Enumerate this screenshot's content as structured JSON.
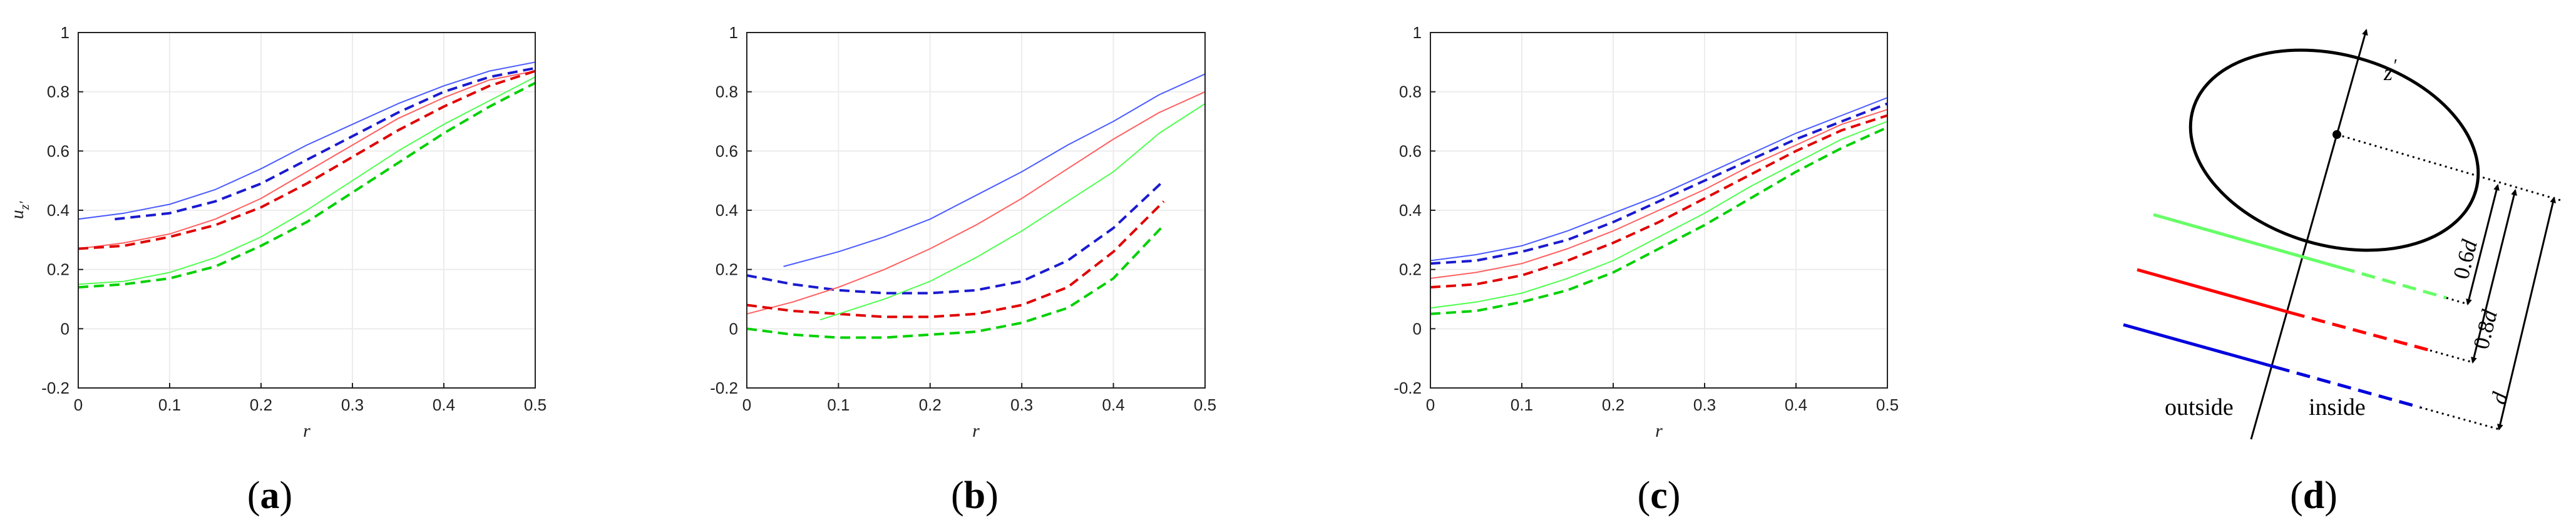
{
  "chart_data": [
    {
      "type": "line",
      "panel": "a",
      "label_open": "(",
      "label_letter": "a",
      "label_close": ")",
      "xlabel": "r",
      "ylabel_base": "u",
      "ylabel_sub": "z′",
      "xlim": [
        0,
        0.5
      ],
      "ylim": [
        -0.2,
        1
      ],
      "xticks": [
        "0",
        "0.1",
        "0.2",
        "0.3",
        "0.4",
        "0.5"
      ],
      "yticks": [
        "-0.2",
        "0",
        "0.2",
        "0.4",
        "0.6",
        "0.8",
        "1"
      ],
      "grid": true,
      "series": [
        {
          "name": "blue-solid",
          "color": "#4a5cff",
          "style": "solid",
          "x": [
            0,
            0.05,
            0.1,
            0.15,
            0.2,
            0.25,
            0.3,
            0.35,
            0.4,
            0.45,
            0.5
          ],
          "y": [
            0.37,
            0.39,
            0.42,
            0.47,
            0.54,
            0.62,
            0.69,
            0.76,
            0.82,
            0.87,
            0.9
          ]
        },
        {
          "name": "blue-dashed",
          "color": "#1a1ad0",
          "style": "dashed",
          "x": [
            0.04,
            0.1,
            0.15,
            0.2,
            0.25,
            0.3,
            0.35,
            0.4,
            0.45,
            0.5
          ],
          "y": [
            0.37,
            0.39,
            0.43,
            0.49,
            0.57,
            0.65,
            0.73,
            0.8,
            0.85,
            0.88
          ]
        },
        {
          "name": "red-solid",
          "color": "#ff6060",
          "style": "solid",
          "x": [
            0,
            0.05,
            0.1,
            0.15,
            0.2,
            0.25,
            0.3,
            0.35,
            0.4,
            0.45,
            0.5
          ],
          "y": [
            0.27,
            0.29,
            0.32,
            0.37,
            0.44,
            0.53,
            0.62,
            0.71,
            0.78,
            0.84,
            0.87
          ]
        },
        {
          "name": "red-dashed",
          "color": "#e00000",
          "style": "dashed",
          "x": [
            0,
            0.05,
            0.1,
            0.15,
            0.2,
            0.25,
            0.3,
            0.35,
            0.4,
            0.45,
            0.5
          ],
          "y": [
            0.27,
            0.28,
            0.31,
            0.35,
            0.41,
            0.49,
            0.58,
            0.67,
            0.75,
            0.82,
            0.87
          ]
        },
        {
          "name": "green-solid",
          "color": "#50ff50",
          "style": "solid",
          "x": [
            0,
            0.05,
            0.1,
            0.15,
            0.2,
            0.25,
            0.3,
            0.35,
            0.4,
            0.45,
            0.5
          ],
          "y": [
            0.15,
            0.16,
            0.19,
            0.24,
            0.31,
            0.4,
            0.5,
            0.6,
            0.69,
            0.77,
            0.85
          ]
        },
        {
          "name": "green-dashed",
          "color": "#00d000",
          "style": "dashed",
          "x": [
            0,
            0.05,
            0.1,
            0.15,
            0.2,
            0.25,
            0.3,
            0.35,
            0.4,
            0.45,
            0.5
          ],
          "y": [
            0.14,
            0.15,
            0.17,
            0.21,
            0.28,
            0.36,
            0.46,
            0.56,
            0.66,
            0.75,
            0.83
          ]
        }
      ]
    },
    {
      "type": "line",
      "panel": "b",
      "label_open": "(",
      "label_letter": "b",
      "label_close": ")",
      "xlabel": "r",
      "ylabel_base": "",
      "ylabel_sub": "",
      "xlim": [
        0,
        0.5
      ],
      "ylim": [
        -0.2,
        1
      ],
      "xticks": [
        "0",
        "0.1",
        "0.2",
        "0.3",
        "0.4",
        "0.5"
      ],
      "yticks": [
        "-0.2",
        "0",
        "0.2",
        "0.4",
        "0.6",
        "0.8",
        "1"
      ],
      "grid": true,
      "series": [
        {
          "name": "blue-solid",
          "color": "#4a5cff",
          "style": "solid",
          "x": [
            0.04,
            0.1,
            0.15,
            0.2,
            0.25,
            0.3,
            0.35,
            0.4,
            0.45,
            0.5
          ],
          "y": [
            0.21,
            0.26,
            0.31,
            0.37,
            0.45,
            0.53,
            0.62,
            0.7,
            0.79,
            0.86
          ]
        },
        {
          "name": "blue-dashed",
          "color": "#1a1ad0",
          "style": "dashed",
          "x": [
            0,
            0.05,
            0.1,
            0.15,
            0.2,
            0.25,
            0.3,
            0.35,
            0.4,
            0.455
          ],
          "y": [
            0.18,
            0.15,
            0.13,
            0.12,
            0.12,
            0.13,
            0.16,
            0.23,
            0.34,
            0.5
          ]
        },
        {
          "name": "red-solid",
          "color": "#ff6060",
          "style": "solid",
          "x": [
            0,
            0.05,
            0.1,
            0.15,
            0.2,
            0.25,
            0.3,
            0.35,
            0.4,
            0.45,
            0.5
          ],
          "y": [
            0.05,
            0.09,
            0.14,
            0.2,
            0.27,
            0.35,
            0.44,
            0.54,
            0.64,
            0.73,
            0.8
          ]
        },
        {
          "name": "red-dashed",
          "color": "#e00000",
          "style": "dashed",
          "x": [
            0,
            0.05,
            0.1,
            0.15,
            0.2,
            0.25,
            0.3,
            0.35,
            0.4,
            0.455
          ],
          "y": [
            0.08,
            0.06,
            0.05,
            0.04,
            0.04,
            0.05,
            0.08,
            0.14,
            0.26,
            0.43
          ]
        },
        {
          "name": "green-solid",
          "color": "#50ff50",
          "style": "solid",
          "x": [
            0.08,
            0.1,
            0.15,
            0.2,
            0.25,
            0.3,
            0.35,
            0.4,
            0.45,
            0.5
          ],
          "y": [
            0.03,
            0.05,
            0.1,
            0.16,
            0.24,
            0.33,
            0.43,
            0.53,
            0.66,
            0.76
          ]
        },
        {
          "name": "green-dashed",
          "color": "#00d000",
          "style": "dashed",
          "x": [
            0,
            0.05,
            0.1,
            0.15,
            0.2,
            0.25,
            0.3,
            0.35,
            0.4,
            0.455
          ],
          "y": [
            0.0,
            -0.02,
            -0.03,
            -0.03,
            -0.02,
            -0.01,
            0.02,
            0.07,
            0.17,
            0.35
          ]
        }
      ]
    },
    {
      "type": "line",
      "panel": "c",
      "label_open": "(",
      "label_letter": "c",
      "label_close": ")",
      "xlabel": "r",
      "ylabel_base": "",
      "ylabel_sub": "",
      "xlim": [
        0,
        0.5
      ],
      "ylim": [
        -0.2,
        1
      ],
      "xticks": [
        "0",
        "0.1",
        "0.2",
        "0.3",
        "0.4",
        "0.5"
      ],
      "yticks": [
        "-0.2",
        "0",
        "0.2",
        "0.4",
        "0.6",
        "0.8",
        "1"
      ],
      "grid": true,
      "series": [
        {
          "name": "blue-solid",
          "color": "#4a5cff",
          "style": "solid",
          "x": [
            0,
            0.05,
            0.1,
            0.15,
            0.2,
            0.25,
            0.3,
            0.35,
            0.4,
            0.45,
            0.5
          ],
          "y": [
            0.23,
            0.25,
            0.28,
            0.33,
            0.39,
            0.45,
            0.52,
            0.59,
            0.66,
            0.72,
            0.78
          ]
        },
        {
          "name": "blue-dashed",
          "color": "#1a1ad0",
          "style": "dashed",
          "x": [
            0,
            0.05,
            0.1,
            0.15,
            0.2,
            0.25,
            0.3,
            0.35,
            0.4,
            0.45,
            0.5
          ],
          "y": [
            0.22,
            0.23,
            0.26,
            0.3,
            0.36,
            0.43,
            0.5,
            0.57,
            0.64,
            0.7,
            0.76
          ]
        },
        {
          "name": "red-solid",
          "color": "#ff6060",
          "style": "solid",
          "x": [
            0,
            0.05,
            0.1,
            0.15,
            0.2,
            0.25,
            0.3,
            0.35,
            0.4,
            0.45,
            0.5
          ],
          "y": [
            0.17,
            0.19,
            0.22,
            0.27,
            0.33,
            0.4,
            0.47,
            0.55,
            0.62,
            0.69,
            0.74
          ]
        },
        {
          "name": "red-dashed",
          "color": "#e00000",
          "style": "dashed",
          "x": [
            0,
            0.05,
            0.1,
            0.15,
            0.2,
            0.25,
            0.3,
            0.35,
            0.4,
            0.45,
            0.5
          ],
          "y": [
            0.14,
            0.15,
            0.18,
            0.23,
            0.29,
            0.36,
            0.44,
            0.52,
            0.6,
            0.67,
            0.72
          ]
        },
        {
          "name": "green-solid",
          "color": "#50ff50",
          "style": "solid",
          "x": [
            0,
            0.05,
            0.1,
            0.15,
            0.2,
            0.25,
            0.3,
            0.35,
            0.4,
            0.45,
            0.5
          ],
          "y": [
            0.07,
            0.09,
            0.12,
            0.17,
            0.23,
            0.31,
            0.39,
            0.48,
            0.56,
            0.64,
            0.7
          ]
        },
        {
          "name": "green-dashed",
          "color": "#00d000",
          "style": "dashed",
          "x": [
            0,
            0.05,
            0.1,
            0.15,
            0.2,
            0.25,
            0.3,
            0.35,
            0.4,
            0.45,
            0.5
          ],
          "y": [
            0.05,
            0.06,
            0.09,
            0.13,
            0.19,
            0.27,
            0.35,
            0.44,
            0.53,
            0.61,
            0.68
          ]
        }
      ]
    }
  ],
  "diagram": {
    "label_open": "(",
    "label_letter": "d",
    "label_close": ")",
    "axis_label_base": "z",
    "axis_label_prime": "′",
    "outside_label": "outside",
    "inside_label": "inside",
    "dim_06": "0.6",
    "dim_08": "0.8",
    "dim_d": "d",
    "colors": {
      "green": "#66ff66",
      "red": "#ff0000",
      "blue": "#0000dd",
      "black": "#000000"
    }
  }
}
